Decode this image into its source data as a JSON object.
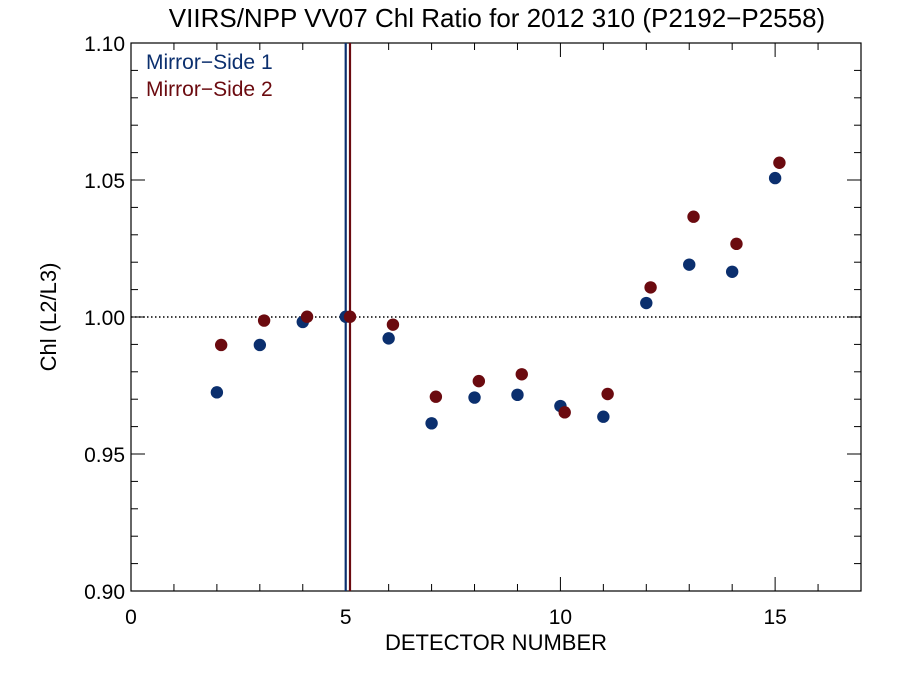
{
  "chart_data": {
    "type": "scatter",
    "title": "VIIRS/NPP VV07 Chl Ratio for 2012 310 (P2192−P2558)",
    "xlabel": "DETECTOR NUMBER",
    "ylabel": "Chl (L2/L3)",
    "xlim": [
      0,
      17
    ],
    "ylim": [
      0.9,
      1.1
    ],
    "x_ticks": [
      0,
      5,
      10,
      15
    ],
    "x_tick_labels": [
      "0",
      "5",
      "10",
      "15"
    ],
    "x_minor_step": 1,
    "y_ticks": [
      0.9,
      0.95,
      1.0,
      1.05,
      1.1
    ],
    "y_tick_labels": [
      "0.90",
      "0.95",
      "1.00",
      "1.05",
      "1.10"
    ],
    "y_minor_step": 0.01,
    "grid": false,
    "legend": "top-left",
    "reference_line": {
      "y": 1.0,
      "style": "dotted"
    },
    "series": [
      {
        "name": "Mirror−Side 1",
        "color": "#0b2f6e",
        "x": [
          2,
          3,
          4,
          5,
          6,
          7,
          8,
          9,
          10,
          11,
          12,
          13,
          14,
          15
        ],
        "y": [
          0.9725,
          0.9898,
          0.9982,
          1.0001,
          0.9922,
          0.9612,
          0.9706,
          0.9716,
          0.9675,
          0.9636,
          1.0051,
          1.0191,
          1.0165,
          1.0507
        ],
        "vline_x": 5.0
      },
      {
        "name": "Mirror−Side 2",
        "color": "#6b0a0f",
        "x": [
          2.1,
          3.1,
          4.1,
          5.1,
          6.1,
          7.1,
          8.1,
          9.1,
          10.1,
          11.1,
          12.1,
          13.1,
          14.1,
          15.1
        ],
        "y": [
          0.9898,
          0.9987,
          1.0001,
          1.0001,
          0.9972,
          0.9709,
          0.9766,
          0.9791,
          0.9652,
          0.9719,
          1.0108,
          1.0366,
          1.0267,
          1.0563
        ],
        "vline_x": 5.1
      }
    ]
  }
}
